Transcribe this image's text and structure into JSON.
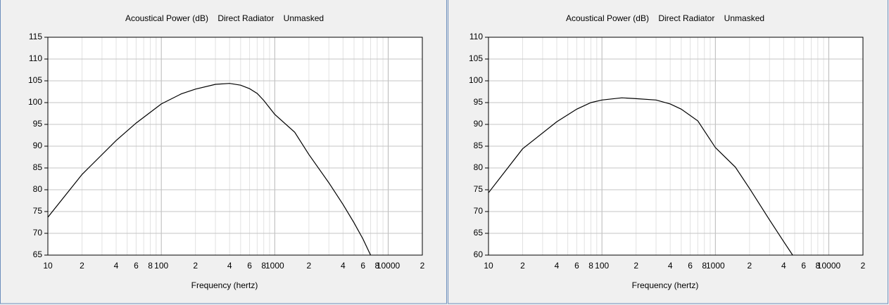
{
  "chart_data": [
    {
      "type": "line",
      "title": "Acoustical Power (dB)    Direct Radiator    Unmasked",
      "x_label": "Frequency (hertz)",
      "x_scale": "log",
      "grid": true,
      "xlim": [
        10,
        20000
      ],
      "xticks": [
        10,
        {
          "value": 20,
          "label": "2"
        },
        {
          "value": 40,
          "label": "4"
        },
        {
          "value": 60,
          "label": "6"
        },
        {
          "value": 80,
          "label": "8"
        },
        100,
        {
          "value": 200,
          "label": "2"
        },
        {
          "value": 400,
          "label": "4"
        },
        {
          "value": 600,
          "label": "6"
        },
        {
          "value": 800,
          "label": "8"
        },
        1000,
        {
          "value": 2000,
          "label": "2"
        },
        {
          "value": 4000,
          "label": "4"
        },
        {
          "value": 6000,
          "label": "6"
        },
        {
          "value": 8000,
          "label": "8"
        },
        10000,
        {
          "value": 20000,
          "label": "2"
        }
      ],
      "x_minor_ticks": [
        30,
        50,
        70,
        90,
        300,
        500,
        700,
        900,
        3000,
        5000,
        7000,
        9000
      ],
      "ylim": [
        65,
        115
      ],
      "yticks": [
        65,
        70,
        75,
        80,
        85,
        90,
        95,
        100,
        105,
        110,
        115
      ],
      "series": [
        {
          "color": "#000000",
          "x": [
            10,
            20,
            40,
            60,
            100,
            150,
            200,
            300,
            400,
            500,
            600,
            700,
            800,
            1000,
            1500,
            2000,
            3000,
            4000,
            5000,
            6000,
            7000
          ],
          "values": [
            73.7,
            83.5,
            91.3,
            95.3,
            99.7,
            102,
            103.1,
            104.2,
            104.4,
            104,
            103.2,
            102.1,
            100.5,
            97.3,
            93.2,
            88.1,
            81.6,
            76.6,
            72.4,
            68.7,
            65
          ]
        }
      ]
    },
    {
      "type": "line",
      "title": "Acoustical Power (dB)    Direct Radiator    Unmasked",
      "x_label": "Frequency (hertz)",
      "x_scale": "log",
      "grid": true,
      "xlim": [
        10,
        20000
      ],
      "xticks": [
        10,
        {
          "value": 20,
          "label": "2"
        },
        {
          "value": 40,
          "label": "4"
        },
        {
          "value": 60,
          "label": "6"
        },
        {
          "value": 80,
          "label": "8"
        },
        100,
        {
          "value": 200,
          "label": "2"
        },
        {
          "value": 400,
          "label": "4"
        },
        {
          "value": 600,
          "label": "6"
        },
        {
          "value": 800,
          "label": "8"
        },
        1000,
        {
          "value": 2000,
          "label": "2"
        },
        {
          "value": 4000,
          "label": "4"
        },
        {
          "value": 6000,
          "label": "6"
        },
        {
          "value": 8000,
          "label": "8"
        },
        10000,
        {
          "value": 20000,
          "label": "2"
        }
      ],
      "x_minor_ticks": [
        30,
        50,
        70,
        90,
        300,
        500,
        700,
        900,
        3000,
        5000,
        7000,
        9000
      ],
      "ylim": [
        60,
        110
      ],
      "yticks": [
        60,
        65,
        70,
        75,
        80,
        85,
        90,
        95,
        100,
        105,
        110
      ],
      "series": [
        {
          "color": "#000000",
          "x": [
            10,
            20,
            40,
            60,
            80,
            100,
            150,
            200,
            300,
            400,
            500,
            700,
            1000,
            1500,
            2000,
            3000,
            4000,
            4800
          ],
          "values": [
            74.3,
            84.4,
            90.6,
            93.5,
            95,
            95.6,
            96.1,
            95.9,
            95.6,
            94.7,
            93.5,
            90.8,
            84.7,
            80.2,
            75.3,
            68.1,
            63.1,
            60
          ]
        }
      ]
    }
  ]
}
